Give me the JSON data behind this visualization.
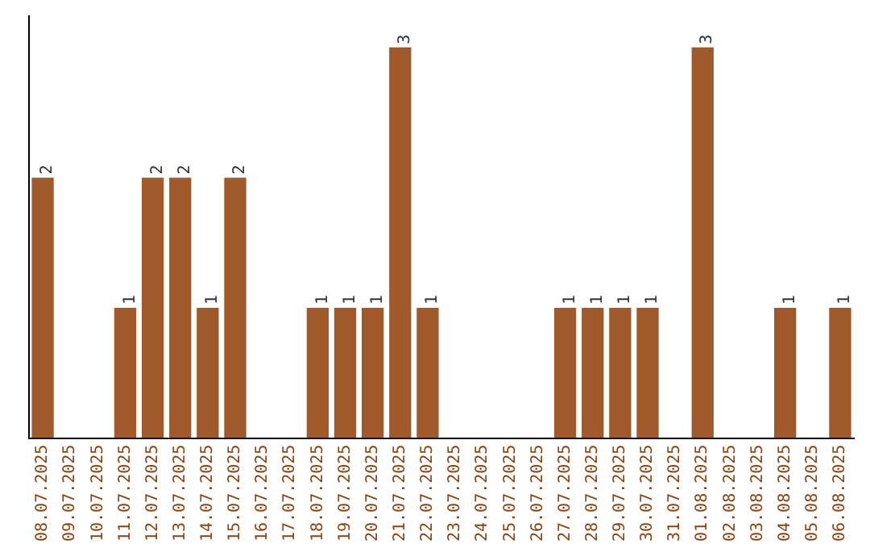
{
  "chart_data": {
    "type": "bar",
    "categories": [
      "08.07.2025",
      "09.07.2025",
      "10.07.2025",
      "11.07.2025",
      "12.07.2025",
      "13.07.2025",
      "14.07.2025",
      "15.07.2025",
      "16.07.2025",
      "17.07.2025",
      "18.07.2025",
      "19.07.2025",
      "20.07.2025",
      "21.07.2025",
      "22.07.2025",
      "23.07.2025",
      "24.07.2025",
      "25.07.2025",
      "26.07.2025",
      "27.07.2025",
      "28.07.2025",
      "29.07.2025",
      "30.07.2025",
      "31.07.2025",
      "01.08.2025",
      "02.08.2025",
      "03.08.2025",
      "04.08.2025",
      "05.08.2025",
      "06.08.2025"
    ],
    "values": [
      2,
      0,
      0,
      1,
      2,
      2,
      1,
      2,
      0,
      0,
      1,
      1,
      1,
      3,
      1,
      0,
      0,
      0,
      0,
      1,
      1,
      1,
      1,
      0,
      3,
      0,
      0,
      1,
      0,
      1
    ],
    "value_labels": [
      "2",
      null,
      null,
      "1",
      "2",
      "2",
      "1",
      "2",
      null,
      null,
      "1",
      "1",
      "1",
      "3",
      "1",
      null,
      null,
      null,
      null,
      "1",
      "1",
      "1",
      "1",
      null,
      "3",
      null,
      null,
      "1",
      null,
      "1"
    ],
    "color": "#a0592a",
    "ylim": [
      0,
      3
    ],
    "tick_labels": "x",
    "grid": false,
    "legend": false
  }
}
